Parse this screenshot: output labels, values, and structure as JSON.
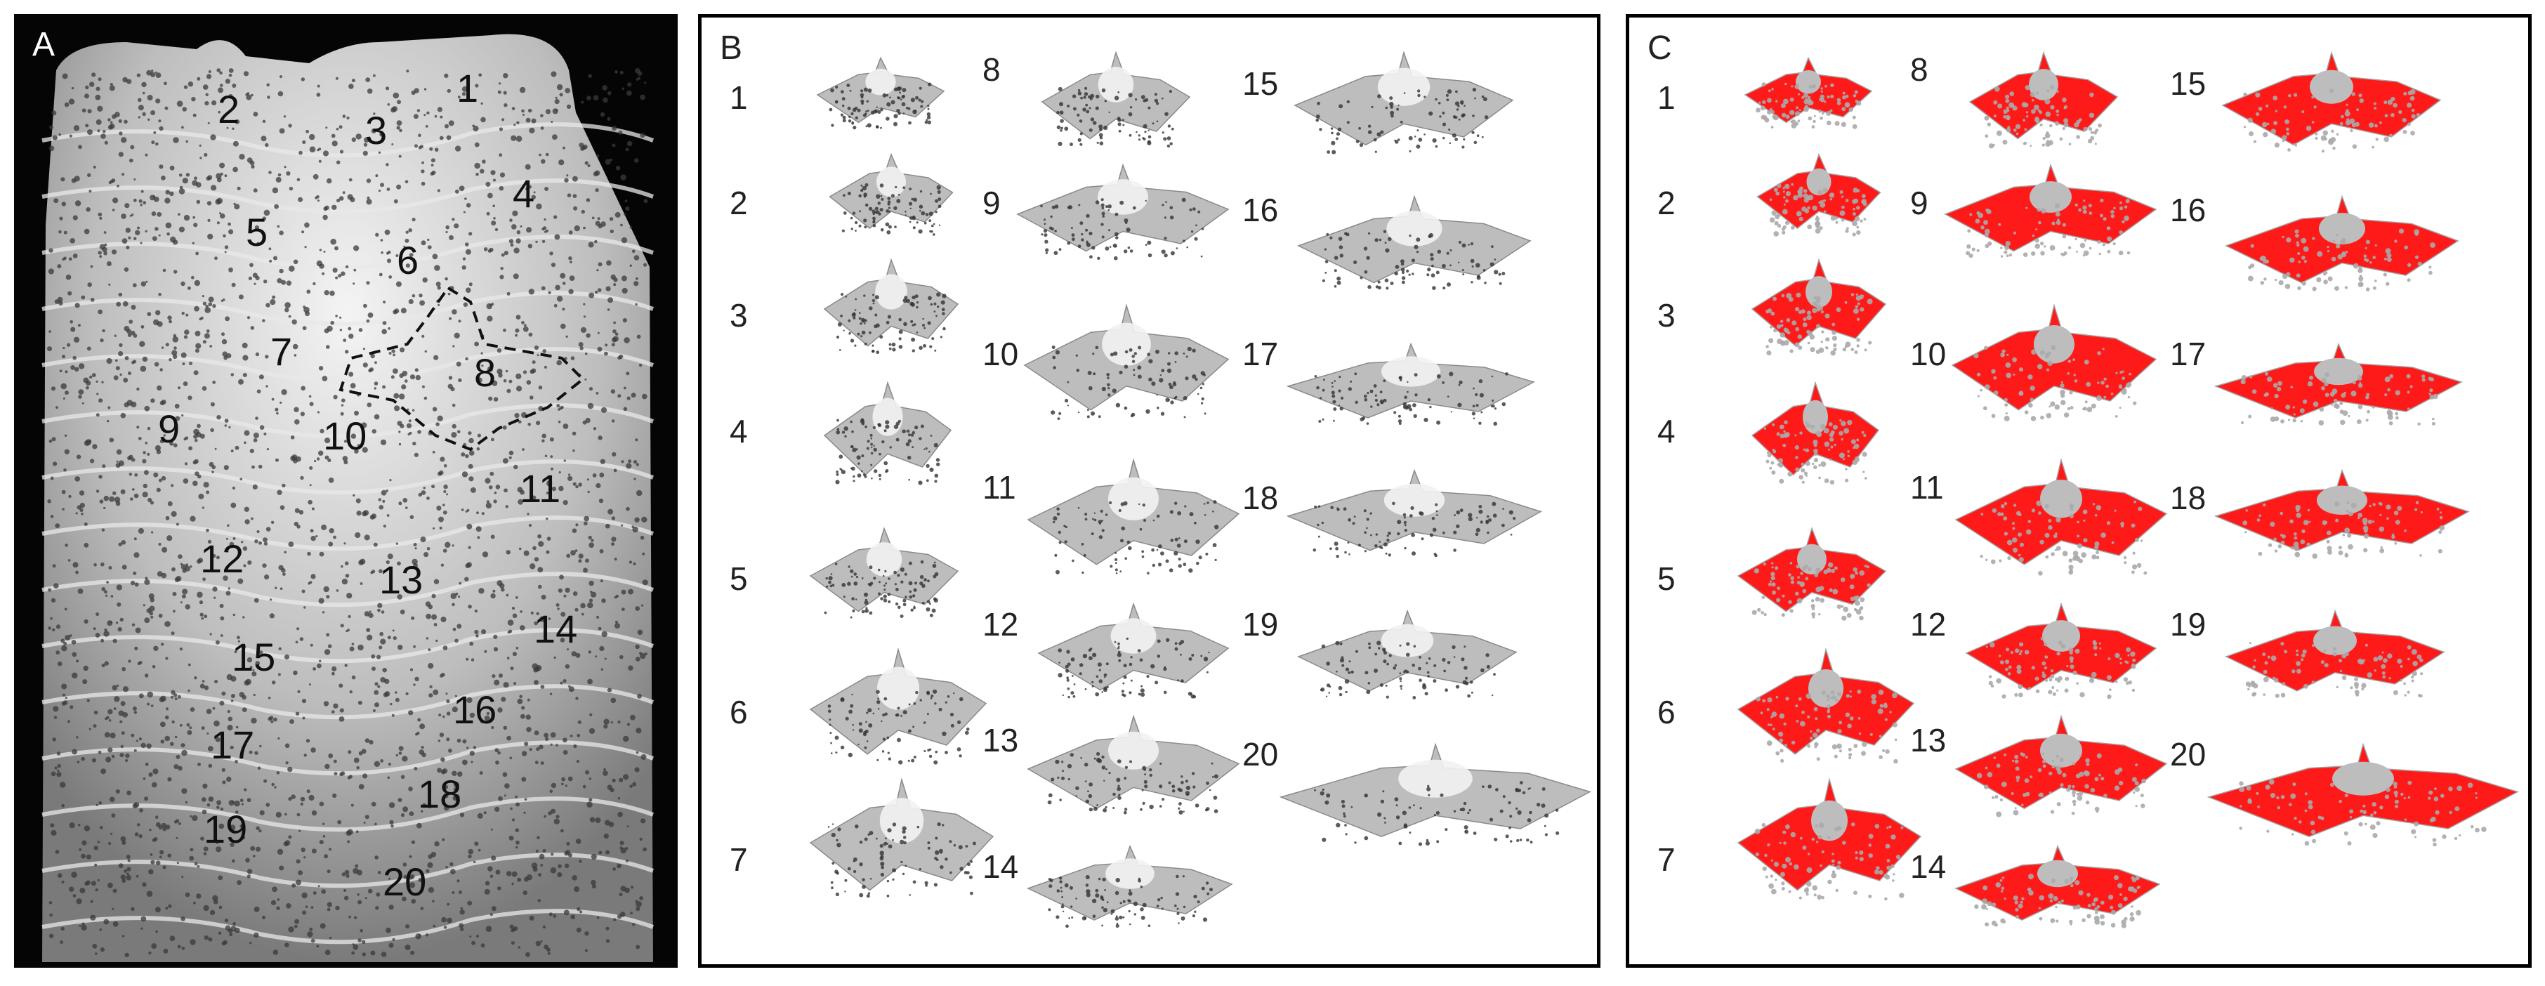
{
  "panels": [
    {
      "id": "A",
      "letter": "A",
      "numbers": [
        "1",
        "2",
        "3",
        "4",
        "5",
        "6",
        "7",
        "8",
        "9",
        "10",
        "11",
        "12",
        "13",
        "14",
        "15",
        "16",
        "17",
        "18",
        "19",
        "20"
      ]
    },
    {
      "id": "B",
      "letter": "B",
      "numbers": [
        "1",
        "2",
        "3",
        "4",
        "5",
        "6",
        "7",
        "8",
        "9",
        "10",
        "11",
        "12",
        "13",
        "14",
        "15",
        "16",
        "17",
        "18",
        "19",
        "20"
      ]
    },
    {
      "id": "C",
      "letter": "C",
      "numbers": [
        "1",
        "2",
        "3",
        "4",
        "5",
        "6",
        "7",
        "8",
        "9",
        "10",
        "11",
        "12",
        "13",
        "14",
        "15",
        "16",
        "17",
        "18",
        "19",
        "20"
      ]
    }
  ],
  "colors": {
    "background": "#ffffff",
    "panelA_bg": "#050505",
    "scale_gray": "#bdbdbd",
    "highlight_red": "#ff1a1a",
    "border": "#000000"
  }
}
